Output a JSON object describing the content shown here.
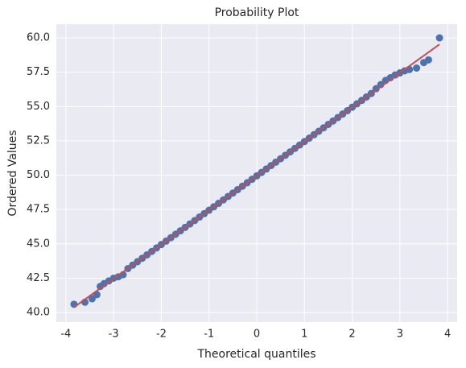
{
  "chart_data": {
    "type": "scatter",
    "title": "Probability Plot",
    "x_label": "Theoretical quantiles",
    "y_label": "Ordered Values",
    "color": "#4c72b0",
    "x": [
      -3.83,
      -3.6,
      -3.45,
      -3.35,
      -3.28,
      -3.2,
      -3.1,
      -3.0,
      -2.9,
      -2.8,
      -2.7,
      -2.6,
      -2.5,
      -2.4,
      -2.3,
      -2.2,
      -2.1,
      -2.0,
      -1.9,
      -1.8,
      -1.7,
      -1.6,
      -1.5,
      -1.4,
      -1.3,
      -1.2,
      -1.1,
      -1.0,
      -0.9,
      -0.8,
      -0.7,
      -0.6,
      -0.5,
      -0.4,
      -0.3,
      -0.2,
      -0.1,
      0,
      0.1,
      0.2,
      0.3,
      0.4,
      0.5,
      0.6,
      0.7,
      0.8,
      0.9,
      1.0,
      1.1,
      1.2,
      1.3,
      1.4,
      1.5,
      1.6,
      1.7,
      1.8,
      1.9,
      2.0,
      2.1,
      2.2,
      2.3,
      2.4,
      2.5,
      2.6,
      2.7,
      2.8,
      2.9,
      3.0,
      3.1,
      3.2,
      3.35,
      3.5,
      3.6,
      3.83
    ],
    "values": [
      40.6,
      40.75,
      41.0,
      41.3,
      41.9,
      42.1,
      42.3,
      42.5,
      42.6,
      42.75,
      43.2,
      43.45,
      43.7,
      43.95,
      44.2,
      44.45,
      44.7,
      44.95,
      45.2,
      45.45,
      45.7,
      45.95,
      46.2,
      46.45,
      46.7,
      46.95,
      47.2,
      47.45,
      47.7,
      47.95,
      48.2,
      48.45,
      48.7,
      48.95,
      49.2,
      49.45,
      49.7,
      49.95,
      50.2,
      50.45,
      50.7,
      50.95,
      51.2,
      51.45,
      51.7,
      51.95,
      52.2,
      52.45,
      52.7,
      52.95,
      53.2,
      53.45,
      53.7,
      53.95,
      54.2,
      54.45,
      54.7,
      54.95,
      55.2,
      55.45,
      55.7,
      55.95,
      56.3,
      56.6,
      56.9,
      57.1,
      57.3,
      57.45,
      57.6,
      57.7,
      57.8,
      58.2,
      58.4,
      60.0
    ],
    "fit_line": {
      "color": "#c44e52",
      "x": [
        -3.83,
        3.83
      ],
      "values": [
        40.38,
        59.53
      ]
    },
    "xlim": [
      -4.2,
      4.2
    ],
    "xticks": [
      -4,
      -3,
      -2,
      -1,
      0,
      1,
      2,
      3,
      4
    ],
    "ylim": [
      39.3,
      61.0
    ],
    "yticks": [
      {
        "value": 40,
        "label": "40.0"
      },
      42.5,
      {
        "value": 45,
        "label": "45.0"
      },
      47.5,
      {
        "value": 50,
        "label": "50.0"
      },
      52.5,
      {
        "value": 55,
        "label": "55.0"
      },
      57.5,
      {
        "value": 60,
        "label": "60.0"
      }
    ],
    "grid": true
  }
}
